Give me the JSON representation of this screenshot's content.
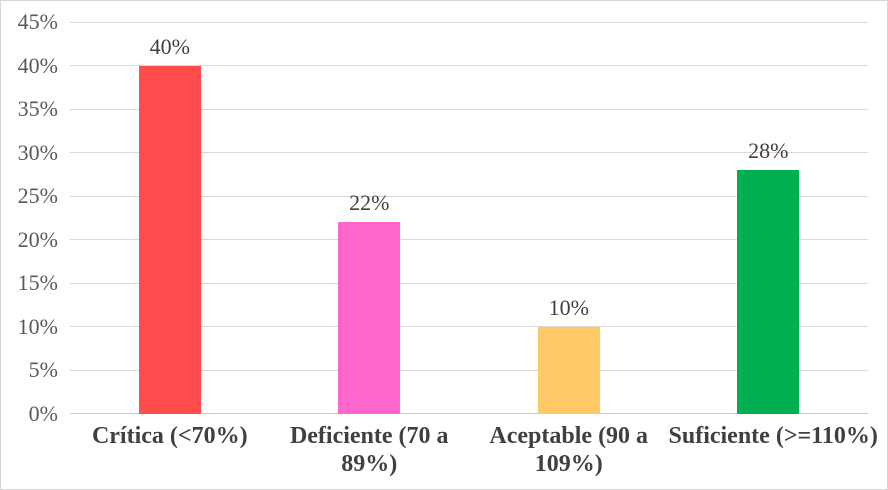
{
  "chart_data": {
    "type": "bar",
    "title": "",
    "xlabel": "",
    "ylabel": "",
    "categories": [
      "Crítica (<70%)",
      "Deficiente (70 a 89%)",
      "Aceptable (90 a 109%)",
      "Suficiente (>=110%)"
    ],
    "category_lines": [
      [
        "Crítica (<70%)"
      ],
      [
        "Deficiente (70 a",
        "89%)"
      ],
      [
        "Aceptable (90 a",
        "109%)"
      ],
      [
        "Suficiente (>=110%)"
      ]
    ],
    "values": [
      40,
      22,
      10,
      28
    ],
    "data_labels": [
      "40%",
      "22%",
      "10%",
      "28%"
    ],
    "bar_colors": [
      "#FF4D4D",
      "#FF66CC",
      "#FFC966",
      "#00B050"
    ],
    "ylim": [
      0,
      45
    ],
    "ytick_step": 5,
    "ytick_labels": [
      "0%",
      "5%",
      "10%",
      "15%",
      "20%",
      "25%",
      "30%",
      "35%",
      "40%",
      "45%"
    ],
    "grid": true,
    "legend": "none"
  },
  "style": {
    "background": "#FFFFFF",
    "border_color": "#D6D6D6",
    "gridline_color": "#D9D9D9",
    "axis_line_color": "#C9C9C9",
    "ytick_color": "#595959",
    "data_label_color": "#404040",
    "category_label_color": "#404040"
  }
}
